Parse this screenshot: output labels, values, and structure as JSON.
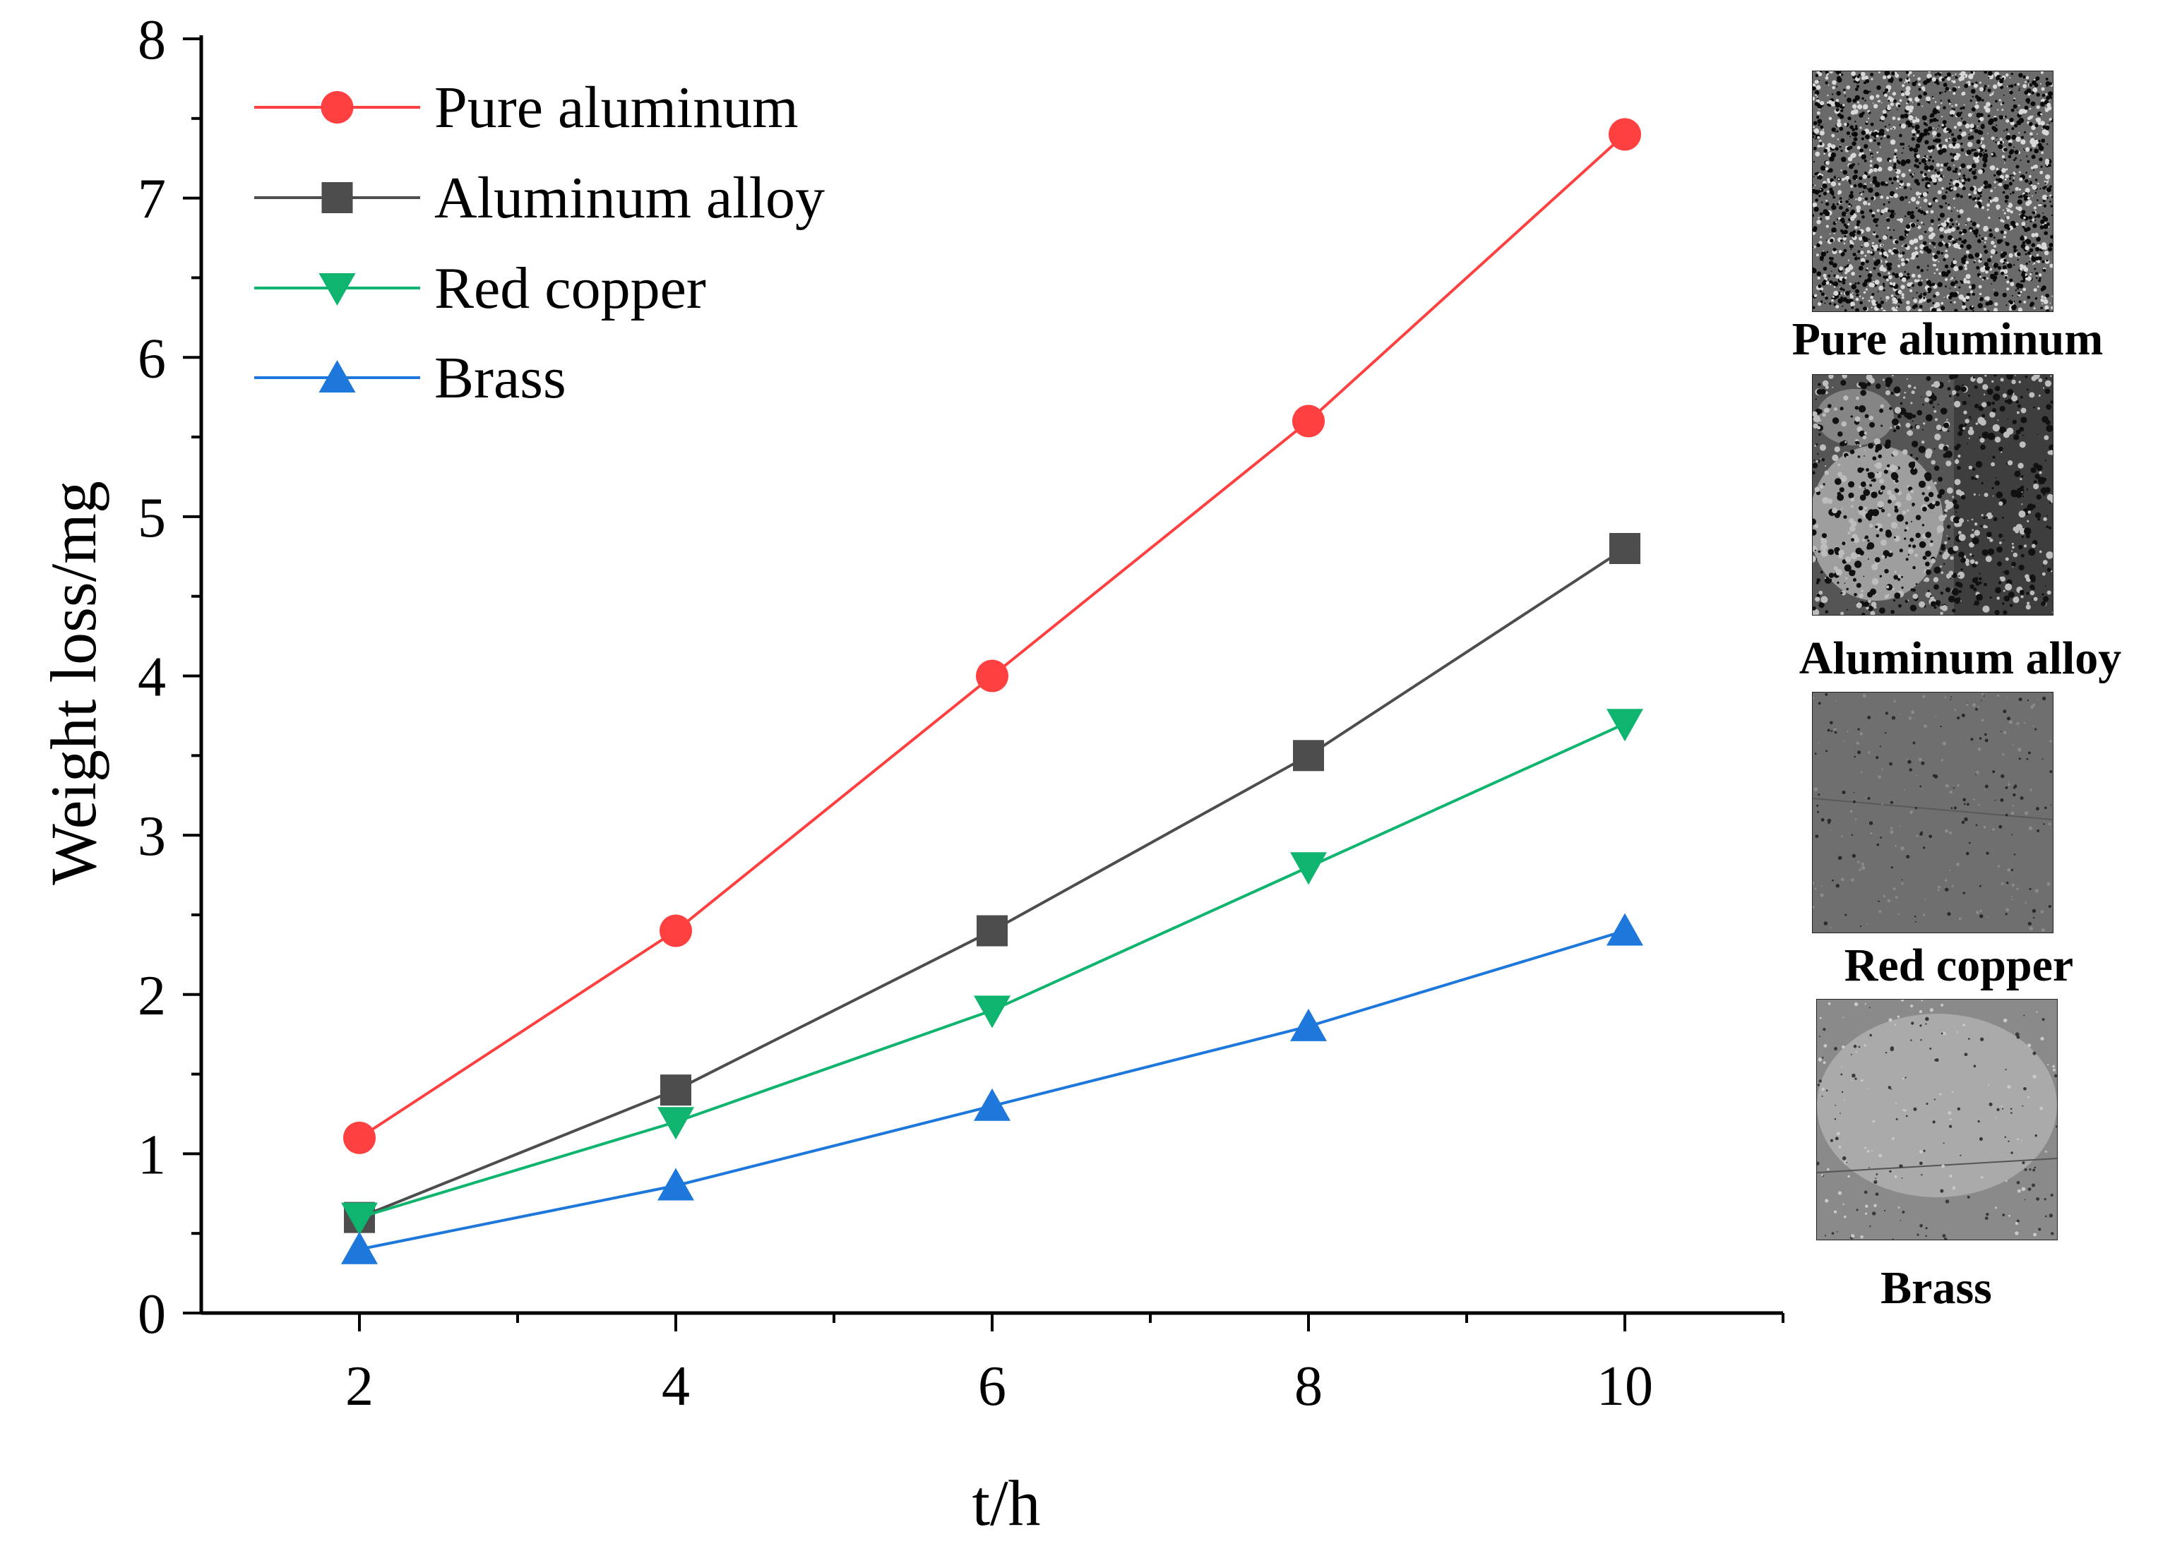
{
  "chart_data": {
    "type": "line",
    "xlabel": "t/h",
    "ylabel": "Weight loss/mg",
    "xlim": [
      1,
      11
    ],
    "ylim": [
      0,
      8
    ],
    "x_ticks": [
      2,
      4,
      6,
      8,
      10
    ],
    "y_ticks": [
      0,
      1,
      2,
      3,
      4,
      5,
      6,
      7,
      8
    ],
    "x": [
      2,
      4,
      6,
      8,
      10
    ],
    "legend_position": "top-left",
    "grid": false,
    "series": [
      {
        "name": "Pure aluminum",
        "marker": "circle",
        "color": "#ff4040",
        "values": [
          1.1,
          2.4,
          4.0,
          5.6,
          7.4
        ]
      },
      {
        "name": "Aluminum alloy",
        "marker": "square",
        "color": "#4d4d4d",
        "values": [
          0.6,
          1.4,
          2.4,
          3.5,
          4.8
        ]
      },
      {
        "name": "Red copper",
        "marker": "triangle-down",
        "color": "#0fb46e",
        "values": [
          0.6,
          1.2,
          1.9,
          2.8,
          3.7
        ]
      },
      {
        "name": "Brass",
        "marker": "triangle-up",
        "color": "#1e78dc",
        "values": [
          0.4,
          0.8,
          1.3,
          1.8,
          2.4
        ]
      }
    ]
  },
  "micrographs": [
    {
      "caption": "Pure aluminum",
      "tone": "#6a6a6a"
    },
    {
      "caption": "Aluminum alloy",
      "tone": "#555555"
    },
    {
      "caption": "Red copper",
      "tone": "#6f6f6f"
    },
    {
      "caption": "Brass",
      "tone": "#8a8a8a"
    }
  ]
}
